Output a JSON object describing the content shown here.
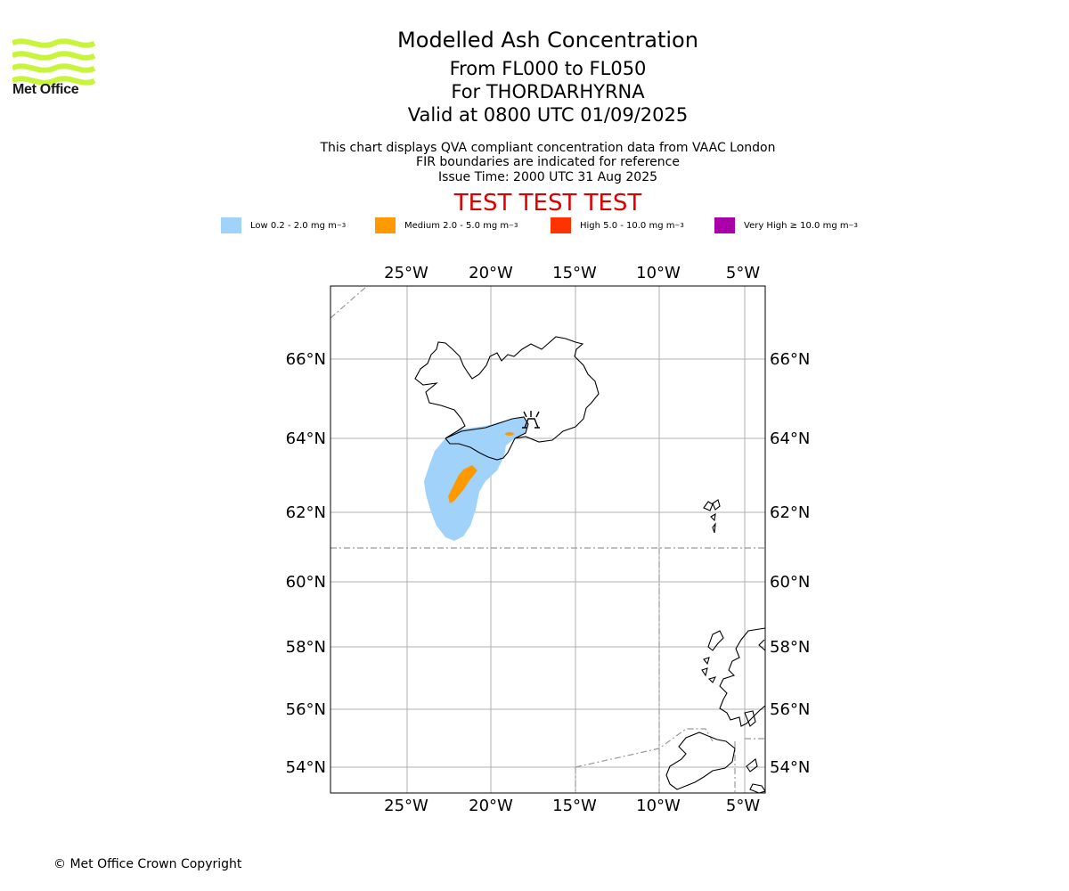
{
  "header": {
    "logo_text": "Met Office",
    "title": "Modelled Ash Concentration",
    "flight_levels": "From FL000 to FL050",
    "volcano": "For THORDARHYRNA",
    "valid_time": "Valid at 0800 UTC 01/09/2025",
    "description": "This chart displays QVA compliant concentration data from VAAC London",
    "fir_note": "FIR boundaries are indicated for reference",
    "issue_time": "Issue Time: 2000 UTC 31 Aug 2025",
    "test_banner": "TEST TEST TEST"
  },
  "legend": [
    {
      "label": "Low 0.2 - 2.0 mg m",
      "sup": "−3",
      "color": "#a0d2fa"
    },
    {
      "label": "Medium 2.0 - 5.0 mg m",
      "sup": "−3",
      "color": "#ff9900"
    },
    {
      "label": "High 5.0 - 10.0 mg m",
      "sup": "−3",
      "color": "#ff3300"
    },
    {
      "label": "Very High  ≥  10.0 mg m",
      "sup": "−3",
      "color": "#aa00aa"
    }
  ],
  "map": {
    "lon_ticks": [
      "25°W",
      "20°W",
      "15°W",
      "10°W",
      "5°W"
    ],
    "lat_ticks": [
      "66°N",
      "64°N",
      "62°N",
      "60°N",
      "58°N",
      "56°N",
      "54°N"
    ],
    "volcano_marker": "volcano-icon"
  },
  "footer": {
    "copyright": "© Met Office Crown Copyright"
  }
}
